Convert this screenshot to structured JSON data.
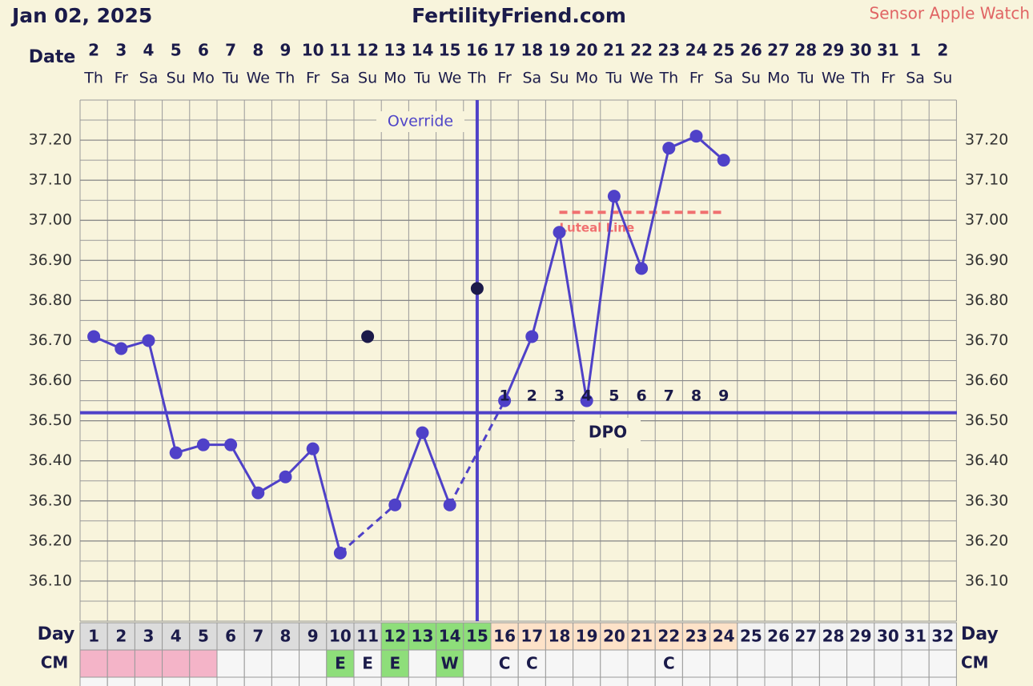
{
  "chart_data": {
    "type": "line",
    "date": "Jan 02, 2025",
    "title": "FertilityFriend.com",
    "sensor": "Sensor Apple Watch",
    "date_label": "Date",
    "dates": [
      "2",
      "3",
      "4",
      "5",
      "6",
      "7",
      "8",
      "9",
      "10",
      "11",
      "12",
      "13",
      "14",
      "15",
      "16",
      "17",
      "18",
      "19",
      "20",
      "21",
      "22",
      "23",
      "24",
      "25",
      "26",
      "27",
      "28",
      "29",
      "30",
      "31",
      "1",
      "2"
    ],
    "weekdays": [
      "Th",
      "Fr",
      "Sa",
      "Su",
      "Mo",
      "Tu",
      "We",
      "Th",
      "Fr",
      "Sa",
      "Su",
      "Mo",
      "Tu",
      "We",
      "Th",
      "Fr",
      "Sa",
      "Su",
      "Mo",
      "Tu",
      "We",
      "Th",
      "Fr",
      "Sa",
      "Su",
      "Mo",
      "Tu",
      "We",
      "Th",
      "Fr",
      "Sa",
      "Su"
    ],
    "day_label": "Day",
    "categories": [
      1,
      2,
      3,
      4,
      5,
      6,
      7,
      8,
      9,
      10,
      11,
      12,
      13,
      14,
      15,
      16,
      17,
      18,
      19,
      20,
      21,
      22,
      23,
      24,
      25,
      26,
      27,
      28,
      29,
      30,
      31,
      32
    ],
    "series": [
      {
        "color": "#4f41c8",
        "values": [
          36.71,
          36.68,
          36.7,
          36.42,
          36.44,
          36.44,
          36.32,
          36.36,
          36.43,
          36.17,
          null,
          36.29,
          36.47,
          36.29,
          null,
          36.55,
          36.71,
          36.97,
          36.55,
          37.06,
          36.88,
          37.18,
          37.21,
          37.15,
          null,
          null,
          null,
          null,
          null,
          null,
          null,
          null
        ]
      }
    ],
    "discarded": {
      "color": "#1c1a4a",
      "values": [
        null,
        null,
        null,
        null,
        null,
        null,
        null,
        null,
        null,
        null,
        36.71,
        null,
        null,
        null,
        36.83,
        null,
        null,
        null,
        null,
        null,
        null,
        null,
        null,
        null,
        null,
        null,
        null,
        null,
        null,
        null,
        null,
        null
      ]
    },
    "ylim": [
      36.0,
      37.3
    ],
    "yticks": [
      {
        "value": 36.1,
        "label": "36.10"
      },
      {
        "value": 36.2,
        "label": "36.20"
      },
      {
        "value": 36.3,
        "label": "36.30"
      },
      {
        "value": 36.4,
        "label": "36.40"
      },
      {
        "value": 36.5,
        "label": "36.50"
      },
      {
        "value": 36.6,
        "label": "36.60"
      },
      {
        "value": 36.7,
        "label": "36.70"
      },
      {
        "value": 36.8,
        "label": "36.80"
      },
      {
        "value": 36.9,
        "label": "36.90"
      },
      {
        "value": 37.0,
        "label": "37.00"
      },
      {
        "value": 37.1,
        "label": "37.10"
      },
      {
        "value": 37.2,
        "label": "37.20"
      }
    ],
    "grid": true,
    "coverline": 36.52,
    "override": {
      "label": "Override",
      "day": 15
    },
    "luteal_line": {
      "label": "Luteal Line",
      "value": 37.02,
      "start": 18,
      "end": 24,
      "color": "#f07070"
    },
    "dpo": {
      "label": "DPO",
      "start": 16,
      "values": [
        1,
        2,
        3,
        4,
        5,
        6,
        7,
        8,
        9
      ]
    },
    "cm": {
      "label": "CM",
      "values": [
        null,
        null,
        null,
        null,
        null,
        null,
        null,
        null,
        null,
        "E",
        "E",
        "E",
        null,
        "W",
        null,
        "C",
        "C",
        null,
        null,
        null,
        null,
        "C",
        null,
        null,
        null,
        null,
        null,
        null,
        null,
        null,
        null,
        null
      ]
    }
  }
}
